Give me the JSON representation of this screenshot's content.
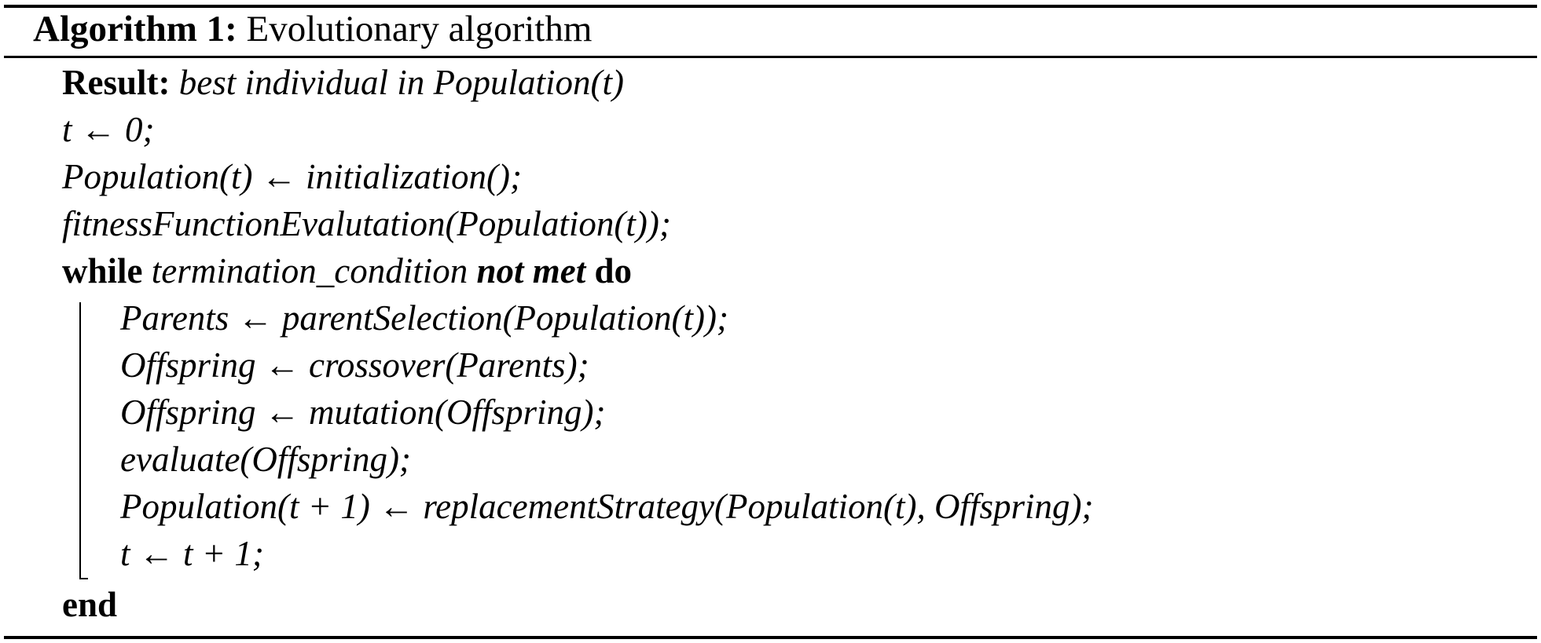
{
  "algorithm": {
    "label": "Algorithm 1:",
    "title": "Evolutionary algorithm"
  },
  "lines": [
    {
      "keyword": "Result:",
      "text": "best individual in Population(t)"
    },
    {
      "text": "t ← 0;"
    },
    {
      "text": "Population(t) ← initialization();"
    },
    {
      "text": "fitnessFunctionEvalutation(Population(t));"
    },
    {
      "keyword": "while",
      "condition": "termination_condition",
      "condition_suffix": "not met",
      "do": "do"
    },
    {
      "text": "Parents ← parentSelection(Population(t));"
    },
    {
      "text": "Offspring ← crossover(Parents);"
    },
    {
      "text": "Offspring ← mutation(Offspring);"
    },
    {
      "text": "evaluate(Offspring);"
    },
    {
      "text": "Population(t + 1) ← replacementStrategy(Population(t), Offspring);"
    },
    {
      "text": "t ← t + 1;"
    },
    {
      "keyword": "end"
    }
  ]
}
